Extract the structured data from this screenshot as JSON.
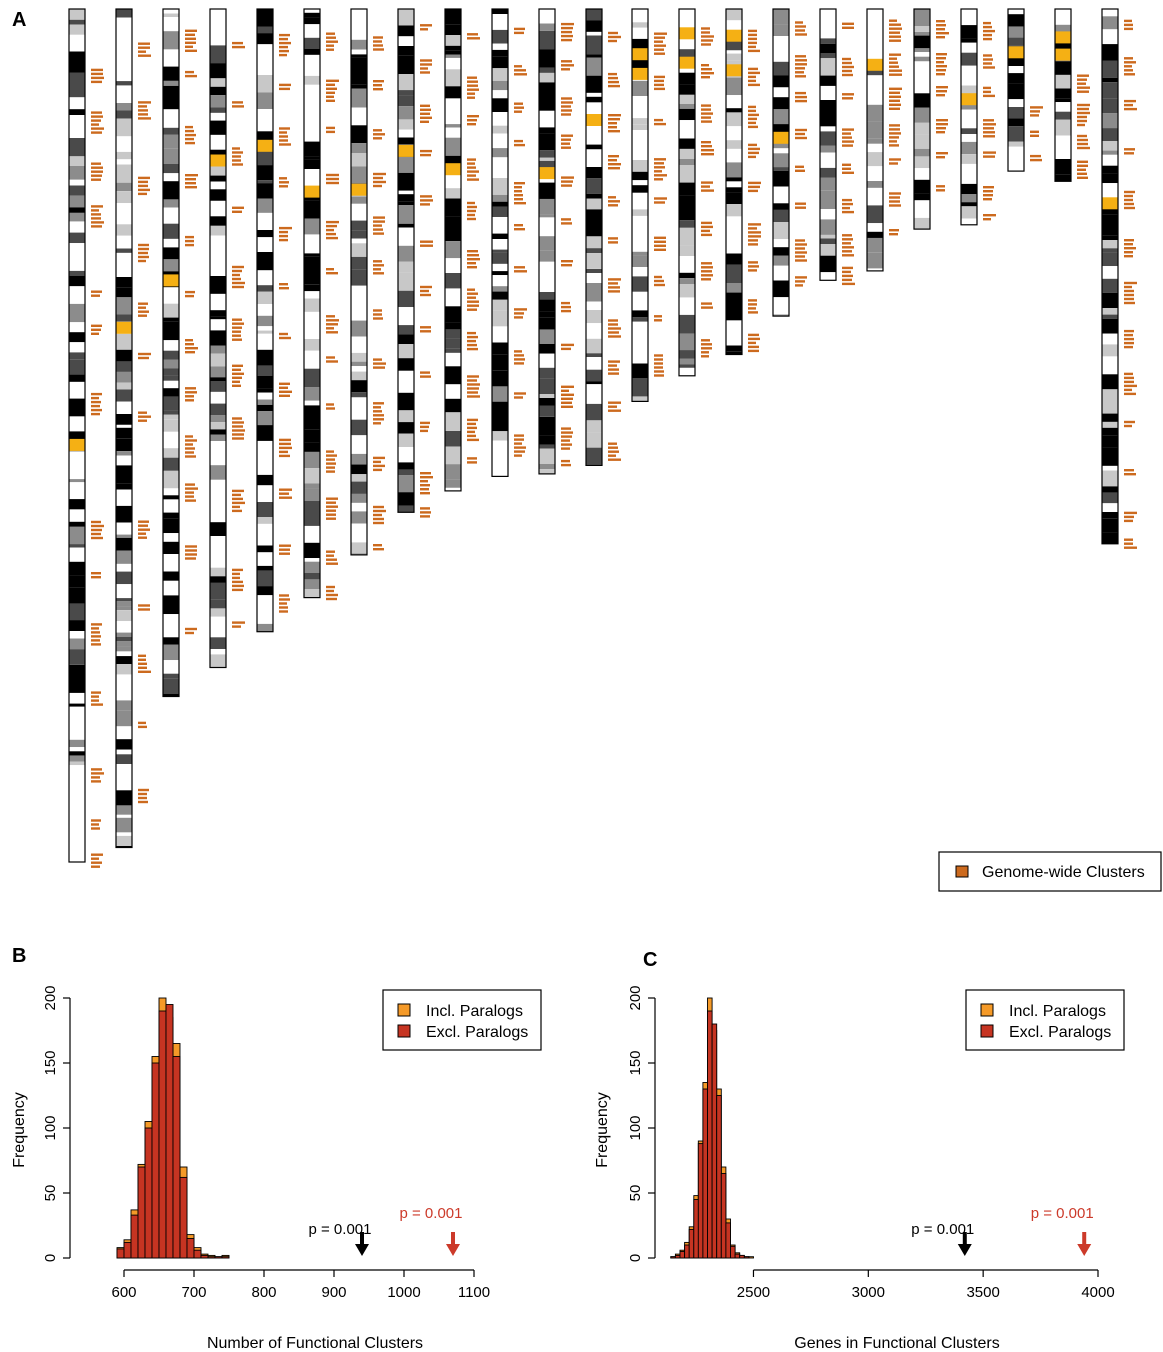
{
  "panel_labels": {
    "a": "A",
    "b": "B",
    "c": "C"
  },
  "colors": {
    "cluster": "#cc6a1e",
    "highlight": "#f5b014",
    "incl": "#f59a28",
    "excl": "#c63422",
    "black": "#000000",
    "red_arrow": "#cc3a2a",
    "band_dark": "#4a4a4a",
    "band_mid": "#8c8c8c",
    "band_light": "#c8c8c8"
  },
  "chart_data": [
    {
      "type": "ideogram",
      "legend": {
        "label": "Genome-wide Clusters",
        "placement": "bottom-right"
      },
      "chromosomes": [
        {
          "n": 1,
          "len": 1.0,
          "hl": [
            0.504
          ],
          "cl": [
            0.07,
            0.12,
            0.18,
            0.23,
            0.33,
            0.37,
            0.45,
            0.6,
            0.66,
            0.72,
            0.8,
            0.89,
            0.95,
            0.99
          ]
        },
        {
          "n": 2,
          "len": 0.983,
          "hl": [
            0.373
          ],
          "cl": [
            0.04,
            0.11,
            0.2,
            0.28,
            0.35,
            0.41,
            0.48,
            0.61,
            0.71,
            0.77,
            0.85,
            0.93
          ]
        },
        {
          "n": 3,
          "len": 0.806,
          "hl": [
            0.386
          ],
          "cl": [
            0.03,
            0.09,
            0.17,
            0.24,
            0.33,
            0.41,
            0.48,
            0.55,
            0.62,
            0.69,
            0.78,
            0.9
          ]
        },
        {
          "n": 4,
          "len": 0.772,
          "hl": [
            0.221
          ],
          "cl": [
            0.05,
            0.14,
            0.21,
            0.3,
            0.39,
            0.47,
            0.54,
            0.62,
            0.73,
            0.85,
            0.93
          ]
        },
        {
          "n": 5,
          "len": 0.73,
          "hl": [
            0.21
          ],
          "cl": [
            0.04,
            0.12,
            0.19,
            0.27,
            0.35,
            0.44,
            0.52,
            0.6,
            0.69,
            0.77,
            0.86,
            0.94
          ]
        },
        {
          "n": 6,
          "len": 0.69,
          "hl": [
            0.3
          ],
          "cl": [
            0.04,
            0.12,
            0.2,
            0.28,
            0.36,
            0.44,
            0.52,
            0.59,
            0.67,
            0.75,
            0.83,
            0.92,
            0.98
          ]
        },
        {
          "n": 7,
          "len": 0.64,
          "hl": [
            0.32
          ],
          "cl": [
            0.05,
            0.13,
            0.22,
            0.3,
            0.38,
            0.46,
            0.55,
            0.64,
            0.72,
            0.82,
            0.91,
            0.98
          ]
        },
        {
          "n": 8,
          "len": 0.59,
          "hl": [
            0.27
          ],
          "cl": [
            0.03,
            0.1,
            0.19,
            0.28,
            0.37,
            0.46,
            0.55,
            0.63,
            0.72,
            0.82,
            0.92,
            0.99
          ]
        },
        {
          "n": 9,
          "len": 0.565,
          "hl": [
            0.32
          ],
          "cl": [
            0.05,
            0.14,
            0.22,
            0.31,
            0.4,
            0.5,
            0.58,
            0.67,
            0.76,
            0.85,
            0.93
          ]
        },
        {
          "n": 10,
          "len": 0.548,
          "hl": [],
          "cl": [
            0.04,
            0.12,
            0.2,
            0.28,
            0.37,
            0.46,
            0.55,
            0.64,
            0.73,
            0.82,
            0.91
          ]
        },
        {
          "n": 11,
          "len": 0.545,
          "hl": [
            0.34
          ],
          "cl": [
            0.03,
            0.11,
            0.19,
            0.27,
            0.36,
            0.45,
            0.54,
            0.63,
            0.72,
            0.81,
            0.9,
            0.97
          ]
        },
        {
          "n": 12,
          "len": 0.535,
          "hl": [
            0.23
          ],
          "cl": [
            0.05,
            0.14,
            0.23,
            0.32,
            0.41,
            0.5,
            0.59,
            0.68,
            0.77,
            0.86,
            0.95
          ]
        },
        {
          "n": 13,
          "len": 0.46,
          "hl": [
            0.1,
            0.15
          ],
          "cl": [
            0.06,
            0.17,
            0.28,
            0.38,
            0.48,
            0.58,
            0.68,
            0.78,
            0.88
          ]
        },
        {
          "n": 14,
          "len": 0.43,
          "hl": [
            0.05,
            0.13
          ],
          "cl": [
            0.05,
            0.15,
            0.26,
            0.36,
            0.47,
            0.58,
            0.69,
            0.8,
            0.9
          ]
        },
        {
          "n": 15,
          "len": 0.405,
          "hl": [
            0.06,
            0.16
          ],
          "cl": [
            0.06,
            0.17,
            0.28,
            0.39,
            0.5,
            0.62,
            0.73,
            0.84,
            0.94
          ]
        },
        {
          "n": 16,
          "len": 0.36,
          "hl": [
            0.4
          ],
          "cl": [
            0.04,
            0.15,
            0.27,
            0.39,
            0.51,
            0.63,
            0.75,
            0.87
          ]
        },
        {
          "n": 17,
          "len": 0.318,
          "hl": [],
          "cl": [
            0.05,
            0.18,
            0.31,
            0.44,
            0.57,
            0.7,
            0.83,
            0.95
          ]
        },
        {
          "n": 18,
          "len": 0.307,
          "hl": [
            0.19
          ],
          "cl": [
            0.04,
            0.17,
            0.3,
            0.44,
            0.57,
            0.7,
            0.84
          ]
        },
        {
          "n": 19,
          "len": 0.258,
          "hl": [],
          "cl": [
            0.05,
            0.2,
            0.35,
            0.5,
            0.65,
            0.8
          ]
        },
        {
          "n": 20,
          "len": 0.253,
          "hl": [
            0.39
          ],
          "cl": [
            0.06,
            0.21,
            0.36,
            0.51,
            0.66,
            0.82,
            0.95
          ]
        },
        {
          "n": 21,
          "len": 0.19,
          "hl": [
            0.23
          ],
          "cl": [
            0.6,
            0.75,
            0.9
          ]
        },
        {
          "n": 22,
          "len": 0.202,
          "hl": [
            0.13,
            0.23
          ],
          "cl": [
            0.38,
            0.55,
            0.73,
            0.88
          ]
        },
        {
          "n": 23,
          "len": 0.627,
          "hl": [
            0.352
          ],
          "cl": [
            0.02,
            0.09,
            0.17,
            0.26,
            0.34,
            0.43,
            0.51,
            0.6,
            0.68,
            0.77,
            0.86,
            0.94,
            0.99
          ]
        }
      ]
    },
    {
      "type": "bar",
      "xlabel": "Number of Functional Clusters",
      "ylabel": "Frequency",
      "xlim": [
        580,
        1100
      ],
      "ylim": [
        0,
        200
      ],
      "xticks": [
        600,
        700,
        800,
        900,
        1000,
        1100
      ],
      "yticks": [
        0,
        50,
        100,
        150,
        200
      ],
      "bin_width": 10,
      "bin_starts": [
        590,
        600,
        610,
        620,
        630,
        640,
        650,
        660,
        670,
        680,
        690,
        700,
        710,
        720,
        730,
        740
      ],
      "legend": {
        "placement": "top-right"
      },
      "series": [
        {
          "name": "Incl. Paralogs",
          "values": [
            8,
            14,
            37,
            72,
            105,
            155,
            200,
            185,
            165,
            70,
            18,
            8,
            3,
            2,
            1,
            2
          ]
        },
        {
          "name": "Excl. Paralogs",
          "values": [
            7,
            12,
            33,
            70,
            100,
            150,
            190,
            195,
            155,
            62,
            15,
            6,
            2,
            1,
            1,
            1
          ]
        }
      ],
      "markers": [
        {
          "label": "p = 0.001",
          "x": 940,
          "color": "#000000"
        },
        {
          "label": "p = 0.001",
          "x": 1070,
          "color": "#cc3a2a"
        }
      ]
    },
    {
      "type": "bar",
      "xlabel": "Genes in Functional Clusters",
      "ylabel": "Frequency",
      "xlim": [
        2080,
        4000
      ],
      "ylim": [
        0,
        200
      ],
      "xticks": [
        2500,
        3000,
        3500,
        4000
      ],
      "yticks": [
        0,
        50,
        100,
        150,
        200
      ],
      "bin_width": 20,
      "bin_starts": [
        2140,
        2160,
        2180,
        2200,
        2220,
        2240,
        2260,
        2280,
        2300,
        2320,
        2340,
        2360,
        2380,
        2400,
        2420,
        2440,
        2460,
        2480
      ],
      "legend": {
        "placement": "top-right"
      },
      "series": [
        {
          "name": "Incl. Paralogs",
          "values": [
            1,
            3,
            6,
            12,
            24,
            48,
            90,
            135,
            200,
            175,
            130,
            70,
            30,
            10,
            4,
            2,
            1,
            1
          ]
        },
        {
          "name": "Excl. Paralogs",
          "values": [
            1,
            2,
            5,
            10,
            22,
            45,
            88,
            130,
            190,
            180,
            125,
            65,
            27,
            9,
            3,
            2,
            1,
            0
          ]
        }
      ],
      "markers": [
        {
          "label": "p = 0.001",
          "x": 3420,
          "color": "#000000"
        },
        {
          "label": "p = 0.001",
          "x": 3940,
          "color": "#cc3a2a"
        }
      ]
    }
  ]
}
